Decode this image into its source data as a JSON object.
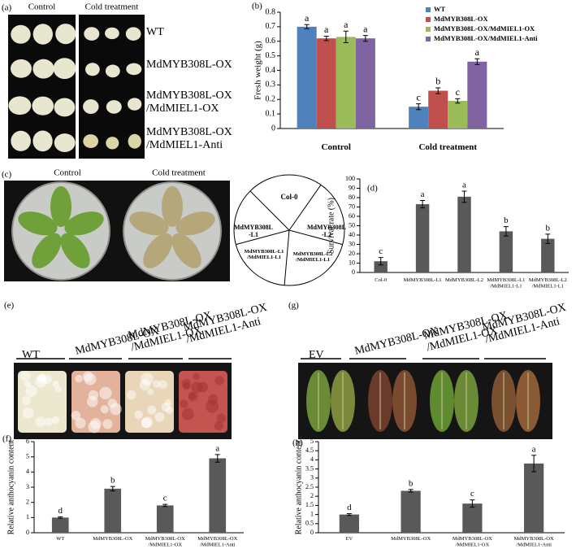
{
  "panels": {
    "a": {
      "label": "(a)",
      "columns": [
        "Control",
        "Cold treatment"
      ],
      "rows": [
        [
          "WT"
        ],
        [
          "MdMYB308L-OX"
        ],
        [
          "MdMYB308L-OX",
          "/MdMIEL1-OX"
        ],
        [
          "MdMYB308L-OX",
          "/MdMIEL1-Anti"
        ]
      ]
    },
    "c": {
      "label": "(c)",
      "columns": [
        "Control",
        "Cold  treatment"
      ],
      "sectors": [
        [
          "Col-0"
        ],
        [
          "MdMYB308L",
          "-L2"
        ],
        [
          "MdMYB308L-L2",
          "/MdMIEL1-L1"
        ],
        [
          "MdMYB308L-L1",
          "/MdMIEL1-L1"
        ],
        [
          "MdMYB308L",
          "-L1"
        ]
      ]
    },
    "e": {
      "label": "(e)",
      "groups": [
        [
          "WT"
        ],
        [
          "MdMYB308L-OX"
        ],
        [
          "MdMYB308L-OX",
          "/MdMIEL1-OX"
        ],
        [
          "MdMYB308L-OX",
          "/MdMIEL1-Anti"
        ]
      ]
    },
    "g": {
      "label": "(g)",
      "groups": [
        [
          "EV"
        ],
        [
          "MdMYB308L-OX"
        ],
        [
          "MdMYB308L-OX",
          "/MdMIEL1-OX"
        ],
        [
          "MdMYB308L-OX",
          "/MdMIEL1-Anti"
        ]
      ]
    }
  },
  "chart_data": [
    {
      "type": "bar",
      "panel_label": "(b)",
      "ylabel": "Fresh weight (g)",
      "categories": [
        [
          "Control"
        ],
        [
          "Cold treatment"
        ]
      ],
      "series": [
        {
          "name": "WT",
          "color": "#4f81bd",
          "values": [
            0.7,
            0.15
          ],
          "errors": [
            0.015,
            0.02
          ],
          "letters": [
            "a",
            "c"
          ]
        },
        {
          "name": "MdMYB308L-OX",
          "color": "#c0504d",
          "values": [
            0.62,
            0.26
          ],
          "errors": [
            0.015,
            0.02
          ],
          "letters": [
            "a",
            "b"
          ]
        },
        {
          "name": "MdMYB308L-OX/MdMIEL1-OX",
          "color": "#9bbb59",
          "values": [
            0.63,
            0.19
          ],
          "errors": [
            0.04,
            0.015
          ],
          "letters": [
            "a",
            "c"
          ]
        },
        {
          "name": "MdMYB308L-OX/MdMIEL1-Anti",
          "color": "#8064a2",
          "values": [
            0.62,
            0.46
          ],
          "errors": [
            0.02,
            0.02
          ],
          "letters": [
            "a",
            "a"
          ]
        }
      ],
      "ylim": [
        0,
        0.8
      ],
      "yticks": [
        0,
        0.1,
        0.2,
        0.3,
        0.4,
        0.5,
        0.6,
        0.7,
        0.8
      ],
      "legend": "upper right"
    },
    {
      "type": "bar",
      "panel_label": "(d)",
      "ylabel": "Survival rate (%)",
      "color": "#595959",
      "categories": [
        [
          "Col-0"
        ],
        [
          "MdMYB308L-L1"
        ],
        [
          "MdMYB308L-L2"
        ],
        [
          "MdMYB308L-L1",
          "/MdMIEL1-L1"
        ],
        [
          "MdMYB308L-L2",
          "/MdMIEL1-L1"
        ]
      ],
      "values": [
        12,
        73,
        81,
        44,
        36
      ],
      "errors": [
        4,
        4,
        6,
        5,
        5
      ],
      "letters": [
        "c",
        "a",
        "a",
        "b",
        "b"
      ],
      "ylim": [
        0,
        100
      ],
      "yticks": [
        0,
        10,
        20,
        30,
        40,
        50,
        60,
        70,
        80,
        90,
        100
      ]
    },
    {
      "type": "bar",
      "panel_label": "(f)",
      "ylabel": "Relative anthocyanin  content",
      "color": "#595959",
      "categories": [
        [
          "WT"
        ],
        [
          "MdMYB308L-OX"
        ],
        [
          "MdMYB308L-OX",
          "/MdMIEL1-OX"
        ],
        [
          "MdMYB308L-OX",
          "/MdMIEL1-Anti"
        ]
      ],
      "values": [
        1.0,
        2.9,
        1.8,
        4.9
      ],
      "errors": [
        0.05,
        0.15,
        0.07,
        0.25
      ],
      "letters": [
        "d",
        "b",
        "c",
        "a"
      ],
      "ylim": [
        0,
        6
      ],
      "yticks": [
        0,
        1,
        2,
        3,
        4,
        5,
        6
      ]
    },
    {
      "type": "bar",
      "panel_label": "(h)",
      "ylabel": "Relative anthocyanin  content",
      "color": "#595959",
      "categories": [
        [
          "EV"
        ],
        [
          "MdMYB308L-OX"
        ],
        [
          "MdMYB308L-OX",
          "/MdMIEL1-OX"
        ],
        [
          "MdMYB308L-OX",
          "/MdMIEL1-Anti"
        ]
      ],
      "values": [
        1.0,
        2.3,
        1.6,
        3.8
      ],
      "errors": [
        0.05,
        0.07,
        0.2,
        0.45
      ],
      "letters": [
        "d",
        "b",
        "c",
        "a"
      ],
      "ylim": [
        0,
        5
      ],
      "yticks": [
        0,
        0.5,
        1,
        1.5,
        2,
        2.5,
        3,
        3.5,
        4,
        4.5,
        5
      ]
    }
  ]
}
